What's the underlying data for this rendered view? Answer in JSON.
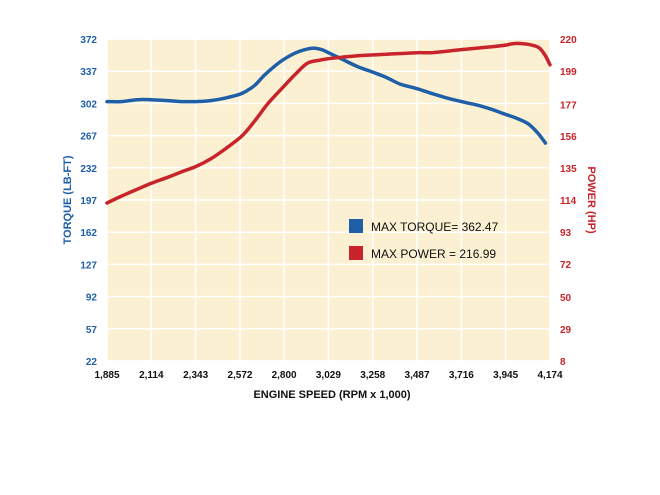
{
  "chart_data": {
    "type": "line",
    "title": "",
    "xlabel": "ENGINE SPEED (RPM x 1,000)",
    "ylabel_left": "TORQUE (LB-FT)",
    "ylabel_right": "POWER (HP)",
    "x_ticks": [
      "1,885",
      "2,114",
      "2,343",
      "2,572",
      "2,800",
      "3,029",
      "3,258",
      "3,487",
      "3,716",
      "3,945",
      "4,174"
    ],
    "y_left_ticks": [
      "22",
      "57",
      "92",
      "127",
      "162",
      "197",
      "232",
      "267",
      "302",
      "337",
      "372"
    ],
    "y_right_ticks": [
      "8",
      "29",
      "50",
      "72",
      "93",
      "114",
      "135",
      "156",
      "177",
      "199",
      "220"
    ],
    "xlim": [
      1885,
      4174
    ],
    "ylim_left": [
      22,
      372
    ],
    "ylim_right": [
      8,
      220
    ],
    "grid": true,
    "colors": {
      "torque": "#1f5fa8",
      "power": "#c8242b",
      "plot_bg": "#fbf1d2",
      "grid": "#ffffff"
    },
    "series": [
      {
        "name": "TORQUE",
        "axis": "left",
        "x": [
          1885,
          1960,
          2040,
          2114,
          2200,
          2280,
          2343,
          2420,
          2500,
          2572,
          2610,
          2650,
          2700,
          2760,
          2800,
          2860,
          2920,
          2960,
          3000,
          3040,
          3100,
          3180,
          3258,
          3330,
          3400,
          3487,
          3560,
          3640,
          3716,
          3800,
          3880,
          3945,
          4000,
          4060,
          4110,
          4150
        ],
        "values": [
          304,
          304,
          306,
          306,
          305,
          304,
          304,
          305,
          308,
          312,
          316,
          322,
          333,
          344,
          350,
          357,
          361,
          362,
          360,
          356,
          350,
          342,
          336,
          330,
          323,
          318,
          313,
          308,
          304,
          300,
          295,
          290,
          286,
          280,
          270,
          259
        ]
      },
      {
        "name": "POWER",
        "axis": "right",
        "x": [
          1885,
          1950,
          2040,
          2114,
          2200,
          2280,
          2343,
          2420,
          2500,
          2572,
          2610,
          2660,
          2720,
          2800,
          2860,
          2920,
          2980,
          3029,
          3100,
          3180,
          3258,
          3330,
          3420,
          3487,
          3560,
          3640,
          3716,
          3800,
          3880,
          3945,
          3985,
          4030,
          4080,
          4120,
          4150,
          4174
        ],
        "values": [
          112,
          116,
          121,
          125,
          129,
          133,
          136,
          141,
          148,
          155,
          160,
          168,
          178,
          189,
          197,
          204,
          206,
          207,
          208,
          209,
          209.5,
          210,
          210.5,
          211,
          211,
          212,
          213,
          214,
          215,
          216,
          217,
          216.99,
          216,
          214,
          209,
          203
        ]
      }
    ],
    "legend": [
      {
        "label": "MAX TORQUE= 362.47",
        "series": "torque"
      },
      {
        "label": "MAX POWER = 216.99",
        "series": "power"
      }
    ]
  }
}
